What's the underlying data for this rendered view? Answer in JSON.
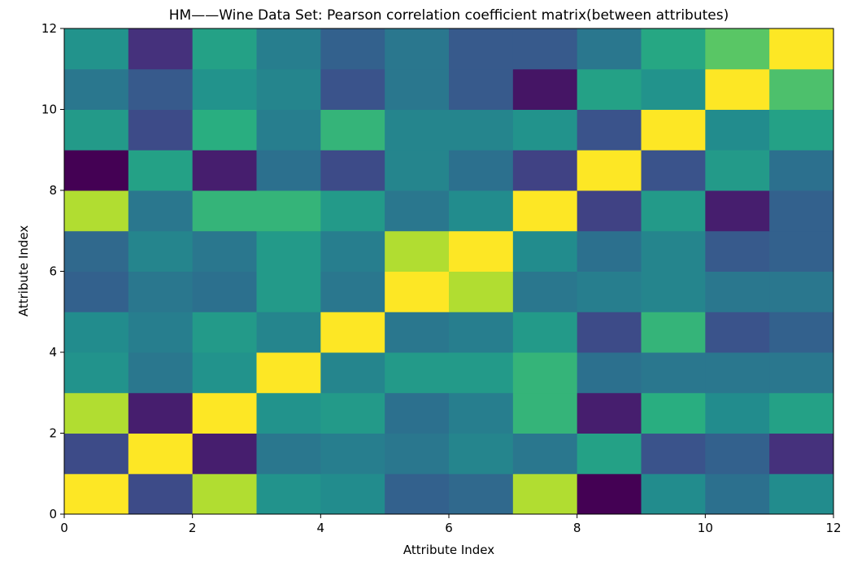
{
  "chart_data": {
    "type": "heatmap",
    "title": "HM——Wine Data Set: Pearson correlation coefficient matrix(between attributes)",
    "xlabel": "Attribute Index",
    "ylabel": "Attribute Index",
    "xlim": [
      0,
      12
    ],
    "ylim": [
      0,
      12
    ],
    "x_ticks": [
      "0",
      "2",
      "4",
      "6",
      "8",
      "10",
      "12"
    ],
    "y_ticks": [
      "0",
      "2",
      "4",
      "6",
      "8",
      "10",
      "12"
    ],
    "colormap": "viridis",
    "vmin": -0.75,
    "vmax": 1.0,
    "rows_bottom_to_top": [
      [
        1.0,
        -0.35,
        0.8,
        0.15,
        0.1,
        -0.2,
        -0.15,
        0.8,
        -0.75,
        0.1,
        -0.1,
        0.1
      ],
      [
        -0.35,
        1.0,
        -0.6,
        -0.05,
        0.0,
        -0.05,
        0.05,
        -0.05,
        0.25,
        -0.3,
        -0.2,
        -0.5
      ],
      [
        0.8,
        -0.6,
        1.0,
        0.15,
        0.2,
        -0.1,
        0.0,
        0.4,
        -0.6,
        0.35,
        0.1,
        0.25
      ],
      [
        0.15,
        -0.05,
        0.15,
        1.0,
        0.05,
        0.2,
        0.2,
        0.4,
        -0.1,
        -0.05,
        -0.05,
        -0.05
      ],
      [
        0.1,
        0.0,
        0.2,
        0.05,
        1.0,
        -0.05,
        0.0,
        0.2,
        -0.35,
        0.4,
        -0.3,
        -0.2
      ],
      [
        -0.2,
        -0.05,
        -0.1,
        0.2,
        -0.05,
        1.0,
        0.8,
        -0.05,
        0.0,
        0.05,
        -0.05,
        -0.05
      ],
      [
        -0.15,
        0.05,
        -0.05,
        0.2,
        0.0,
        0.8,
        1.0,
        0.1,
        -0.1,
        0.05,
        -0.25,
        -0.2
      ],
      [
        0.8,
        -0.05,
        0.4,
        0.4,
        0.2,
        -0.05,
        0.1,
        1.0,
        -0.4,
        0.2,
        -0.6,
        -0.2
      ],
      [
        -0.75,
        0.25,
        -0.6,
        -0.1,
        -0.35,
        0.05,
        -0.1,
        -0.4,
        1.0,
        -0.3,
        0.2,
        -0.1
      ],
      [
        0.2,
        -0.35,
        0.35,
        0.0,
        0.4,
        0.05,
        0.05,
        0.15,
        -0.3,
        1.0,
        0.1,
        0.25
      ],
      [
        -0.05,
        -0.25,
        0.15,
        0.05,
        -0.3,
        -0.05,
        -0.25,
        -0.65,
        0.25,
        0.15,
        1.0,
        0.5
      ],
      [
        0.15,
        -0.5,
        0.25,
        0.0,
        -0.2,
        -0.05,
        -0.25,
        -0.25,
        -0.05,
        0.3,
        0.55,
        1.0
      ]
    ]
  }
}
